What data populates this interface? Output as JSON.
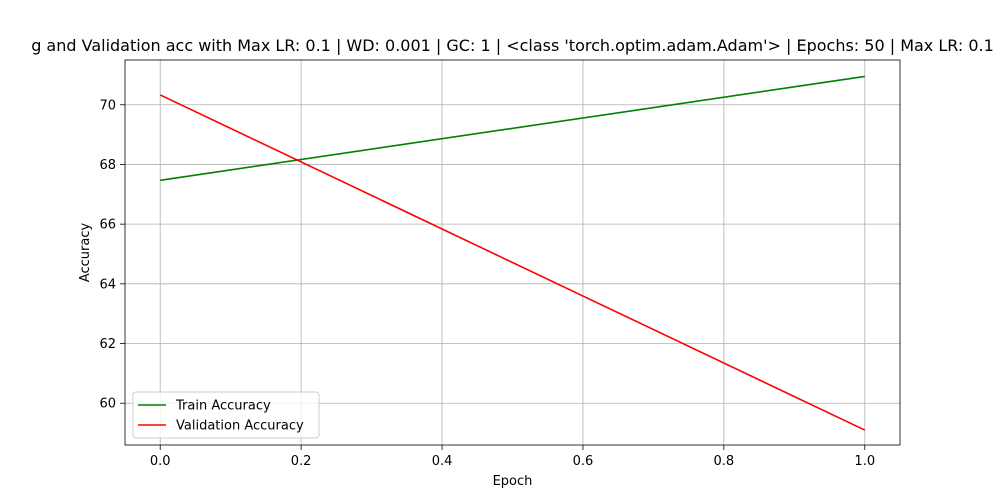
{
  "chart_data": {
    "type": "line",
    "title": "g and Validation acc with Max LR: 0.1 | WD: 0.001 | GC: 1 | <class 'torch.optim.adam.Adam'> | Epochs: 50 | Max LR: 0.1",
    "xlabel": "Epoch",
    "ylabel": "Accuracy",
    "xlim": [
      -0.05,
      1.05
    ],
    "ylim": [
      58.6,
      71.5
    ],
    "xticks": [
      0.0,
      0.2,
      0.4,
      0.6,
      0.8,
      1.0
    ],
    "xtick_labels": [
      "0.0",
      "0.2",
      "0.4",
      "0.6",
      "0.8",
      "1.0"
    ],
    "yticks": [
      60,
      62,
      64,
      66,
      68,
      70
    ],
    "ytick_labels": [
      "60",
      "62",
      "64",
      "66",
      "68",
      "70"
    ],
    "grid": true,
    "legend_position": "lower-left",
    "series": [
      {
        "name": "Train Accuracy",
        "color": "#008000",
        "x": [
          0.0,
          1.0
        ],
        "y": [
          67.47,
          70.95
        ]
      },
      {
        "name": "Validation Accuracy",
        "color": "#ff0000",
        "x": [
          0.0,
          1.0
        ],
        "y": [
          70.33,
          59.1
        ]
      }
    ]
  }
}
